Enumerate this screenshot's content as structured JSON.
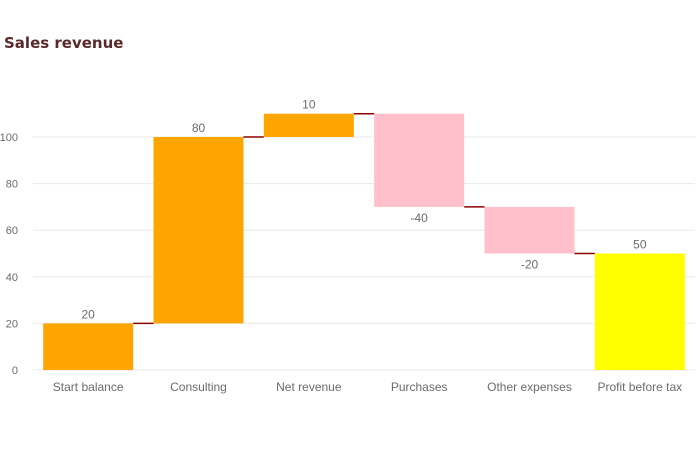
{
  "chart_data": {
    "type": "bar",
    "subtype": "waterfall",
    "title": "Sales revenue",
    "xlabel": "",
    "ylabel": "",
    "ylim": [
      0,
      112
    ],
    "yticks": [
      0,
      20,
      40,
      60,
      80,
      100
    ],
    "grid": true,
    "legend": "none",
    "categories": [
      "Start balance",
      "Consulting",
      "Net revenue",
      "Purchases",
      "Other expenses",
      "Profit before tax"
    ],
    "values": [
      20,
      80,
      10,
      -40,
      -20,
      50
    ],
    "data_labels": [
      "20",
      "80",
      "10",
      "-40",
      "-20",
      "50"
    ],
    "bar_roles": [
      "start",
      "change",
      "change",
      "change",
      "change",
      "total"
    ],
    "colors": {
      "start": "#ffa500",
      "increase": "#ffa500",
      "decrease": "#ffc0cb",
      "total": "#ffff00",
      "connector": "#8b0000",
      "grid": "#e8e8e8",
      "axis_text": "#6b6b6b",
      "title": "#5a2a2a"
    }
  }
}
